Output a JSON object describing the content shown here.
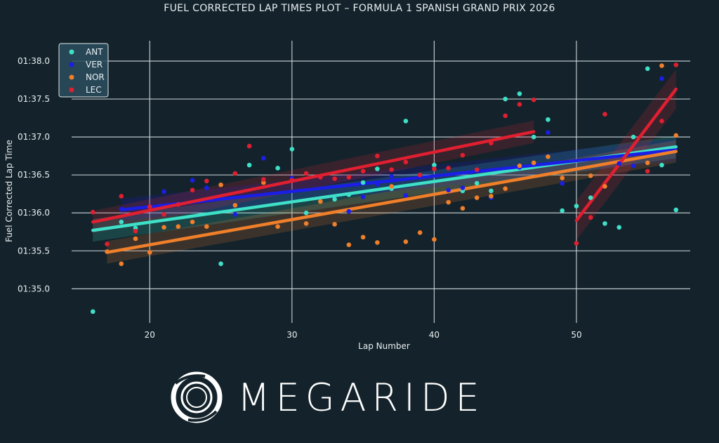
{
  "title": "FUEL CORRECTED LAP TIMES PLOT – FORMULA 1 SPANISH GRAND PRIX 2026",
  "brand": "MEGARIDE",
  "chart_data": {
    "type": "scatter",
    "title": "FUEL CORRECTED LAP TIMES PLOT – FORMULA 1 SPANISH GRAND PRIX 2026",
    "xlabel": "Lap Number",
    "ylabel": "Fuel Corrected Lap Time",
    "xlim": [
      15,
      58
    ],
    "ylim": [
      94.55,
      98.25
    ],
    "xticks": [
      20,
      30,
      40,
      50
    ],
    "yticks": [
      95.0,
      95.5,
      96.0,
      96.5,
      97.0,
      97.5,
      98.0
    ],
    "ytick_labels": [
      "01:35.0",
      "01:35.5",
      "01:36.0",
      "01:36.5",
      "01:37.0",
      "01:37.5",
      "01:38.0"
    ],
    "grid": true,
    "legend_position": "top-left",
    "background": "#14232b",
    "series": [
      {
        "name": "ANT",
        "color": "#3ee0c8",
        "points": [
          [
            16,
            94.7
          ],
          [
            18,
            95.88
          ],
          [
            19,
            95.8
          ],
          [
            25,
            95.33
          ],
          [
            27,
            96.63
          ],
          [
            29,
            96.59
          ],
          [
            30,
            96.84
          ],
          [
            31,
            96.0
          ],
          [
            33,
            96.18
          ],
          [
            34,
            96.24
          ],
          [
            35,
            96.4
          ],
          [
            36,
            96.58
          ],
          [
            37,
            96.32
          ],
          [
            38,
            97.21
          ],
          [
            40,
            96.63
          ],
          [
            42,
            96.29
          ],
          [
            43,
            96.39
          ],
          [
            44,
            96.29
          ],
          [
            45,
            97.5
          ],
          [
            46,
            97.57
          ],
          [
            47,
            97.0
          ],
          [
            48,
            97.23
          ],
          [
            49,
            96.03
          ],
          [
            50,
            96.09
          ],
          [
            51,
            96.2
          ],
          [
            52,
            95.86
          ],
          [
            53,
            95.81
          ],
          [
            54,
            97.0
          ],
          [
            55,
            97.9
          ],
          [
            56,
            96.63
          ],
          [
            57,
            96.04
          ]
        ],
        "fit": {
          "x": [
            16,
            57
          ],
          "y": [
            95.77,
            96.87
          ]
        }
      },
      {
        "name": "VER",
        "color": "#1a1ee6",
        "points": [
          [
            18,
            96.05
          ],
          [
            21,
            96.28
          ],
          [
            23,
            96.43
          ],
          [
            24,
            96.33
          ],
          [
            26,
            95.98
          ],
          [
            28,
            96.72
          ],
          [
            30,
            96.46
          ],
          [
            34,
            96.02
          ],
          [
            35,
            96.21
          ],
          [
            36,
            96.38
          ],
          [
            37,
            96.48
          ],
          [
            38,
            96.23
          ],
          [
            41,
            96.3
          ],
          [
            42,
            96.33
          ],
          [
            44,
            96.2
          ],
          [
            46,
            96.6
          ],
          [
            48,
            97.06
          ],
          [
            49,
            96.39
          ],
          [
            53,
            96.65
          ],
          [
            54,
            96.62
          ],
          [
            56,
            97.77
          ]
        ],
        "fit": {
          "x": [
            18,
            57
          ],
          "y": [
            96.04,
            96.83
          ]
        }
      },
      {
        "name": "NOR",
        "color": "#f07f2a",
        "points": [
          [
            17,
            95.49
          ],
          [
            18,
            95.33
          ],
          [
            19,
            95.66
          ],
          [
            20,
            95.48
          ],
          [
            21,
            95.81
          ],
          [
            22,
            95.82
          ],
          [
            23,
            95.88
          ],
          [
            24,
            95.82
          ],
          [
            25,
            96.37
          ],
          [
            26,
            96.1
          ],
          [
            28,
            96.4
          ],
          [
            29,
            95.82
          ],
          [
            31,
            95.86
          ],
          [
            32,
            96.15
          ],
          [
            33,
            95.85
          ],
          [
            34,
            95.58
          ],
          [
            35,
            95.68
          ],
          [
            36,
            95.61
          ],
          [
            37,
            96.35
          ],
          [
            38,
            95.62
          ],
          [
            39,
            95.74
          ],
          [
            40,
            95.65
          ],
          [
            41,
            96.14
          ],
          [
            42,
            96.06
          ],
          [
            43,
            96.2
          ],
          [
            44,
            96.22
          ],
          [
            45,
            96.32
          ],
          [
            46,
            96.62
          ],
          [
            47,
            96.66
          ],
          [
            48,
            96.74
          ],
          [
            49,
            96.46
          ],
          [
            51,
            96.49
          ],
          [
            52,
            96.35
          ],
          [
            55,
            96.66
          ],
          [
            56,
            97.94
          ],
          [
            57,
            97.02
          ]
        ],
        "fit": {
          "x": [
            17,
            57
          ],
          "y": [
            95.48,
            96.81
          ]
        }
      },
      {
        "name": "LEC",
        "color": "#e01f30",
        "points": [
          [
            16,
            96.01
          ],
          [
            17,
            95.59
          ],
          [
            18,
            96.22
          ],
          [
            19,
            95.76
          ],
          [
            20,
            96.08
          ],
          [
            21,
            95.98
          ],
          [
            22,
            96.11
          ],
          [
            23,
            96.3
          ],
          [
            24,
            96.42
          ],
          [
            26,
            96.52
          ],
          [
            27,
            96.88
          ],
          [
            28,
            96.44
          ],
          [
            30,
            96.43
          ],
          [
            31,
            96.52
          ],
          [
            32,
            96.47
          ],
          [
            33,
            96.45
          ],
          [
            34,
            96.47
          ],
          [
            35,
            96.55
          ],
          [
            36,
            96.75
          ],
          [
            37,
            96.57
          ],
          [
            38,
            96.67
          ],
          [
            39,
            96.5
          ],
          [
            40,
            96.58
          ],
          [
            41,
            96.59
          ],
          [
            42,
            96.76
          ],
          [
            43,
            96.57
          ],
          [
            44,
            96.92
          ],
          [
            45,
            97.28
          ],
          [
            46,
            97.43
          ],
          [
            47,
            97.49
          ],
          [
            50,
            95.6
          ],
          [
            51,
            95.94
          ],
          [
            52,
            97.3
          ],
          [
            55,
            96.55
          ],
          [
            56,
            97.21
          ],
          [
            57,
            97.95
          ]
        ],
        "fit": {
          "x": [
            16,
            47
          ],
          "y": [
            95.88,
            97.07
          ]
        },
        "fit2": {
          "x": [
            50,
            57
          ],
          "y": [
            95.9,
            97.63
          ]
        }
      }
    ]
  }
}
